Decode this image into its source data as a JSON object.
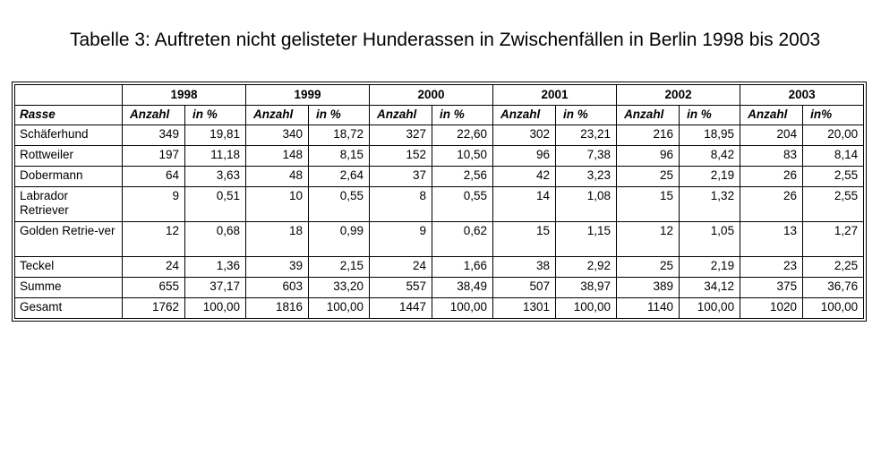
{
  "title": "Tabelle 3: Auftreten nicht gelisteter Hunderassen in Zwischenfällen in Berlin 1998 bis 2003",
  "table": {
    "breed_header": "Rasse",
    "years": [
      {
        "label": "1998",
        "count_label": "Anzahl",
        "pct_label": "in %"
      },
      {
        "label": "1999",
        "count_label": "Anzahl",
        "pct_label": "in %"
      },
      {
        "label": "2000",
        "count_label": "Anzahl",
        "pct_label": "in %"
      },
      {
        "label": "2001",
        "count_label": "Anzahl",
        "pct_label": "in %"
      },
      {
        "label": "2002",
        "count_label": "Anzahl",
        "pct_label": "in %"
      },
      {
        "label": "2003",
        "count_label": "Anzahl",
        "pct_label": "in%"
      }
    ],
    "rows": [
      {
        "breed": "Schäferhund",
        "values": [
          "349",
          "19,81",
          "340",
          "18,72",
          "327",
          "22,60",
          "302",
          "23,21",
          "216",
          "18,95",
          "204",
          "20,00"
        ]
      },
      {
        "breed": "Rottweiler",
        "values": [
          "197",
          "11,18",
          "148",
          "8,15",
          "152",
          "10,50",
          "96",
          "7,38",
          "96",
          "8,42",
          "83",
          "8,14"
        ]
      },
      {
        "breed": "Dobermann",
        "values": [
          "64",
          "3,63",
          "48",
          "2,64",
          "37",
          "2,56",
          "42",
          "3,23",
          "25",
          "2,19",
          "26",
          "2,55"
        ]
      },
      {
        "breed": "Labrador Retriever",
        "values": [
          "9",
          "0,51",
          "10",
          "0,55",
          "8",
          "0,55",
          "14",
          "1,08",
          "15",
          "1,32",
          "26",
          "2,55"
        ]
      },
      {
        "breed": "Golden Retrie-ver",
        "values": [
          "12",
          "0,68",
          "18",
          "0,99",
          "9",
          "0,62",
          "15",
          "1,15",
          "12",
          "1,05",
          "13",
          "1,27"
        ]
      },
      {
        "breed": "Teckel",
        "values": [
          "24",
          "1,36",
          "39",
          "2,15",
          "24",
          "1,66",
          "38",
          "2,92",
          "25",
          "2,19",
          "23",
          "2,25"
        ]
      },
      {
        "breed": "Summe",
        "values": [
          "655",
          "37,17",
          "603",
          "33,20",
          "557",
          "38,49",
          "507",
          "38,97",
          "389",
          "34,12",
          "375",
          "36,76"
        ]
      },
      {
        "breed": "Gesamt",
        "values": [
          "1762",
          "100,00",
          "1816",
          "100,00",
          "1447",
          "100,00",
          "1301",
          "100,00",
          "1140",
          "100,00",
          "1020",
          "100,00"
        ]
      }
    ]
  }
}
